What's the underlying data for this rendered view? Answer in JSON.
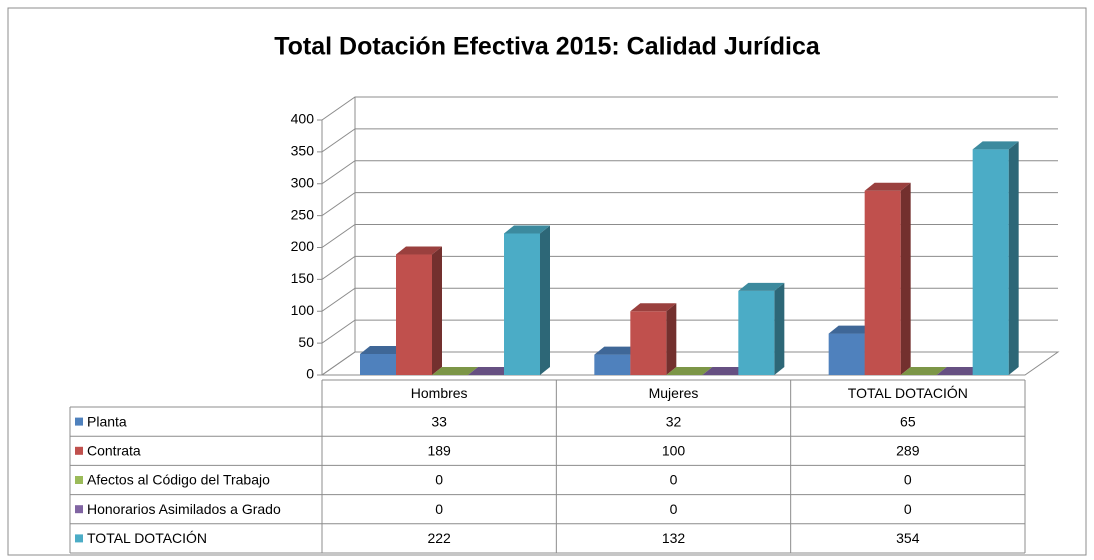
{
  "chart_data": {
    "type": "bar3d",
    "title": "Total Dotación Efectiva 2015: Calidad Jurídica",
    "categories": [
      "Hombres",
      "Mujeres",
      "TOTAL DOTACIÓN"
    ],
    "series": [
      {
        "name": "Planta",
        "color": "#4f81bd",
        "values": [
          33,
          32,
          65
        ]
      },
      {
        "name": "Contrata",
        "color": "#c0504d",
        "values": [
          189,
          100,
          289
        ]
      },
      {
        "name": "Afectos al Código del Trabajo",
        "color": "#9bbb59",
        "values": [
          0,
          0,
          0
        ]
      },
      {
        "name": "Honorarios Asimilados a Grado",
        "color": "#8064a2",
        "values": [
          0,
          0,
          0
        ]
      },
      {
        "name": "TOTAL DOTACIÓN",
        "color": "#4bacc6",
        "values": [
          222,
          132,
          354
        ]
      }
    ],
    "ylim": [
      0,
      400
    ],
    "yticks": [
      0,
      50,
      100,
      150,
      200,
      250,
      300,
      350,
      400
    ],
    "grid": true
  }
}
